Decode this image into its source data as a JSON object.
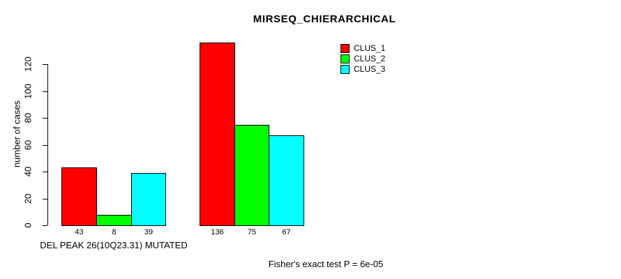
{
  "chart_data": {
    "type": "bar",
    "title": "MIRSEQ_CHIERARCHICAL",
    "ylabel": "number of cases",
    "xlabel": "DEL PEAK 26(10Q23.31) MUTATED",
    "annotation": "Fisher's exact test P = 6e-05",
    "yticks": [
      0,
      20,
      40,
      60,
      80,
      100,
      120
    ],
    "ylim": [
      0,
      140
    ],
    "grid": false,
    "legend_position": "top-right",
    "background_color": "#ffffff",
    "axis_color": "#000000",
    "series": [
      {
        "name": "CLUS_1",
        "color": "#ff0000",
        "values": [
          43,
          136
        ]
      },
      {
        "name": "CLUS_2",
        "color": "#00ff00",
        "values": [
          8,
          75
        ]
      },
      {
        "name": "CLUS_3",
        "color": "#00ffff",
        "values": [
          39,
          67
        ]
      }
    ]
  }
}
